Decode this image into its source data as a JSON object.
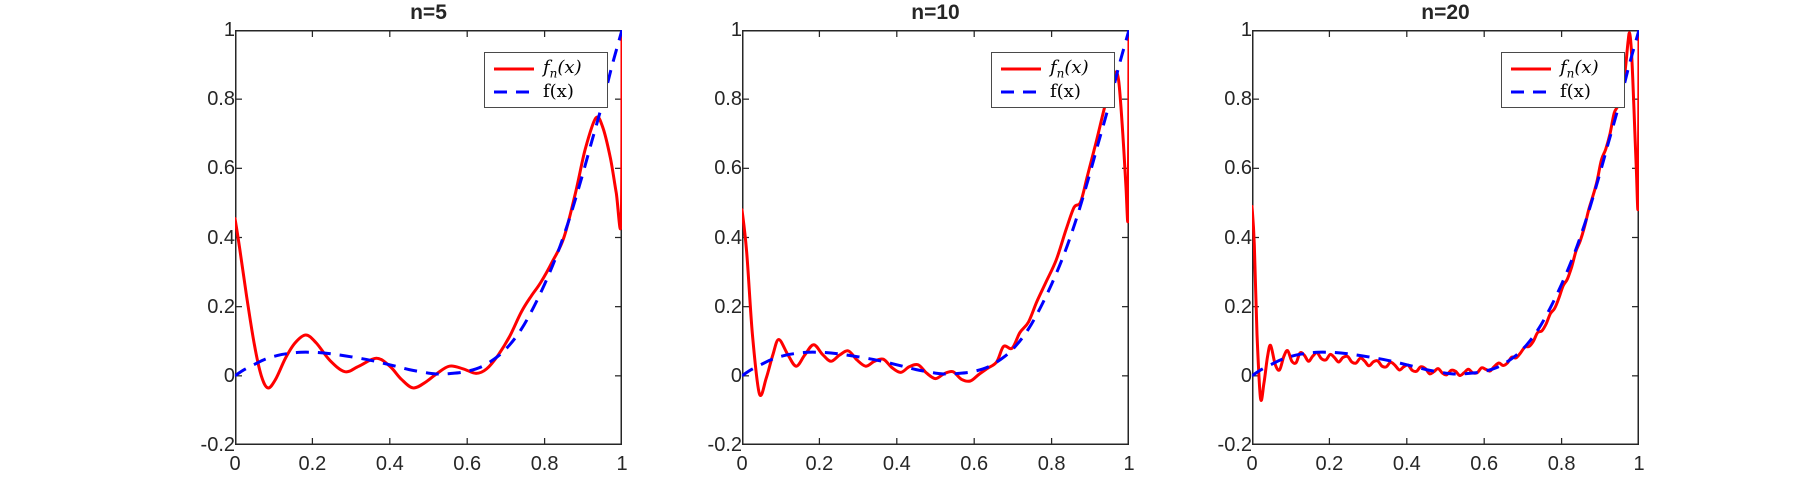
{
  "figure": {
    "background": "#ffffff",
    "axis_color": "#262626",
    "tick_label_color": "#262626",
    "red": "#ff0000",
    "blue": "#0000ff",
    "line_width": 3
  },
  "legend": {
    "fn_base": "f",
    "fn_sub": "n",
    "fn_args": "(x)",
    "f_label": "f(x)"
  },
  "chart_data": {
    "type": "line",
    "xlim": [
      0,
      1
    ],
    "ylim": [
      -0.2,
      1
    ],
    "xticks": [
      "0",
      "0.2",
      "0.4",
      "0.6",
      "0.8",
      "1"
    ],
    "yticks": [
      "-0.2",
      "0",
      "0.2",
      "0.4",
      "0.6",
      "0.8",
      "1"
    ],
    "grid": false,
    "legend_entries": [
      "f_n(x)",
      "f(x)"
    ],
    "legend_position": "top-right",
    "series_styles": [
      {
        "name": "f_n(x)",
        "color": "#ff0000",
        "style": "solid"
      },
      {
        "name": "f(x)",
        "color": "#0000ff",
        "style": "dashed"
      }
    ],
    "f_points": [
      [
        0,
        0
      ],
      [
        0.02,
        0.015
      ],
      [
        0.05,
        0.033
      ],
      [
        0.08,
        0.049
      ],
      [
        0.11,
        0.059
      ],
      [
        0.14,
        0.065
      ],
      [
        0.17,
        0.068
      ],
      [
        0.2,
        0.068
      ],
      [
        0.23,
        0.066
      ],
      [
        0.26,
        0.062
      ],
      [
        0.3,
        0.055
      ],
      [
        0.35,
        0.045
      ],
      [
        0.4,
        0.032
      ],
      [
        0.45,
        0.018
      ],
      [
        0.5,
        0.008
      ],
      [
        0.53,
        0.005
      ],
      [
        0.56,
        0.007
      ],
      [
        0.6,
        0.013
      ],
      [
        0.64,
        0.028
      ],
      [
        0.68,
        0.057
      ],
      [
        0.71,
        0.09
      ],
      [
        0.74,
        0.135
      ],
      [
        0.77,
        0.195
      ],
      [
        0.8,
        0.265
      ],
      [
        0.83,
        0.345
      ],
      [
        0.86,
        0.44
      ],
      [
        0.89,
        0.55
      ],
      [
        0.92,
        0.67
      ],
      [
        0.95,
        0.79
      ],
      [
        0.975,
        0.9
      ],
      [
        1,
        1
      ]
    ],
    "subplots": [
      {
        "title": "n=5",
        "n": 5,
        "fn_points": [
          [
            0,
            0.455
          ],
          [
            0.012,
            0.37
          ],
          [
            0.03,
            0.23
          ],
          [
            0.05,
            0.09
          ],
          [
            0.068,
            0
          ],
          [
            0.085,
            -0.035
          ],
          [
            0.105,
            -0.01
          ],
          [
            0.13,
            0.05
          ],
          [
            0.155,
            0.095
          ],
          [
            0.183,
            0.118
          ],
          [
            0.21,
            0.095
          ],
          [
            0.245,
            0.045
          ],
          [
            0.284,
            0.012
          ],
          [
            0.32,
            0.028
          ],
          [
            0.365,
            0.051
          ],
          [
            0.4,
            0.028
          ],
          [
            0.43,
            -0.01
          ],
          [
            0.46,
            -0.035
          ],
          [
            0.49,
            -0.02
          ],
          [
            0.52,
            0.005
          ],
          [
            0.554,
            0.028
          ],
          [
            0.59,
            0.02
          ],
          [
            0.623,
            0.007
          ],
          [
            0.65,
            0.02
          ],
          [
            0.68,
            0.06
          ],
          [
            0.71,
            0.115
          ],
          [
            0.74,
            0.185
          ],
          [
            0.765,
            0.23
          ],
          [
            0.79,
            0.27
          ],
          [
            0.82,
            0.33
          ],
          [
            0.85,
            0.4
          ],
          [
            0.88,
            0.53
          ],
          [
            0.905,
            0.655
          ],
          [
            0.932,
            0.745
          ],
          [
            0.95,
            0.72
          ],
          [
            0.97,
            0.63
          ],
          [
            0.985,
            0.53
          ],
          [
            0.998,
            0.45
          ],
          [
            1,
            1
          ]
        ]
      },
      {
        "title": "n=10",
        "n": 10,
        "fn_points": [
          [
            0,
            0.48
          ],
          [
            0.012,
            0.36
          ],
          [
            0.027,
            0.12
          ],
          [
            0.045,
            -0.052
          ],
          [
            0.063,
            -0.005
          ],
          [
            0.08,
            0.062
          ],
          [
            0.095,
            0.105
          ],
          [
            0.118,
            0.062
          ],
          [
            0.14,
            0.028
          ],
          [
            0.162,
            0.06
          ],
          [
            0.185,
            0.09
          ],
          [
            0.208,
            0.062
          ],
          [
            0.23,
            0.042
          ],
          [
            0.252,
            0.06
          ],
          [
            0.275,
            0.072
          ],
          [
            0.297,
            0.046
          ],
          [
            0.32,
            0.028
          ],
          [
            0.342,
            0.042
          ],
          [
            0.365,
            0.048
          ],
          [
            0.387,
            0.024
          ],
          [
            0.41,
            0.01
          ],
          [
            0.432,
            0.026
          ],
          [
            0.455,
            0.032
          ],
          [
            0.477,
            0.008
          ],
          [
            0.5,
            -0.008
          ],
          [
            0.522,
            0.006
          ],
          [
            0.545,
            0.012
          ],
          [
            0.567,
            -0.01
          ],
          [
            0.59,
            -0.015
          ],
          [
            0.612,
            0.004
          ],
          [
            0.635,
            0.022
          ],
          [
            0.658,
            0.04
          ],
          [
            0.676,
            0.085
          ],
          [
            0.698,
            0.08
          ],
          [
            0.718,
            0.125
          ],
          [
            0.74,
            0.155
          ],
          [
            0.762,
            0.215
          ],
          [
            0.785,
            0.27
          ],
          [
            0.812,
            0.335
          ],
          [
            0.838,
            0.425
          ],
          [
            0.858,
            0.487
          ],
          [
            0.875,
            0.503
          ],
          [
            0.893,
            0.58
          ],
          [
            0.916,
            0.68
          ],
          [
            0.94,
            0.79
          ],
          [
            0.962,
            0.872
          ],
          [
            0.973,
            0.855
          ],
          [
            0.984,
            0.7
          ],
          [
            0.992,
            0.55
          ],
          [
            0.998,
            0.47
          ],
          [
            1,
            1
          ]
        ]
      },
      {
        "title": "n=20",
        "n": 20,
        "fn_points": [
          [
            0,
            0.49
          ],
          [
            0.006,
            0.38
          ],
          [
            0.013,
            0.12
          ],
          [
            0.022,
            -0.065
          ],
          [
            0.031,
            -0.02
          ],
          [
            0.04,
            0.055
          ],
          [
            0.048,
            0.088
          ],
          [
            0.06,
            0.033
          ],
          [
            0.071,
            0.017
          ],
          [
            0.082,
            0.055
          ],
          [
            0.092,
            0.073
          ],
          [
            0.103,
            0.042
          ],
          [
            0.114,
            0.038
          ],
          [
            0.124,
            0.066
          ],
          [
            0.135,
            0.06
          ],
          [
            0.146,
            0.042
          ],
          [
            0.157,
            0.057
          ],
          [
            0.168,
            0.067
          ],
          [
            0.179,
            0.05
          ],
          [
            0.191,
            0.046
          ],
          [
            0.202,
            0.062
          ],
          [
            0.213,
            0.053
          ],
          [
            0.224,
            0.04
          ],
          [
            0.235,
            0.053
          ],
          [
            0.247,
            0.056
          ],
          [
            0.258,
            0.04
          ],
          [
            0.269,
            0.037
          ],
          [
            0.28,
            0.051
          ],
          [
            0.291,
            0.043
          ],
          [
            0.302,
            0.029
          ],
          [
            0.314,
            0.041
          ],
          [
            0.325,
            0.043
          ],
          [
            0.336,
            0.028
          ],
          [
            0.347,
            0.026
          ],
          [
            0.358,
            0.039
          ],
          [
            0.369,
            0.031
          ],
          [
            0.381,
            0.017
          ],
          [
            0.392,
            0.026
          ],
          [
            0.403,
            0.031
          ],
          [
            0.414,
            0.016
          ],
          [
            0.425,
            0.013
          ],
          [
            0.436,
            0.026
          ],
          [
            0.448,
            0.021
          ],
          [
            0.459,
            0.006
          ],
          [
            0.47,
            0.012
          ],
          [
            0.481,
            0.021
          ],
          [
            0.492,
            0.008
          ],
          [
            0.503,
            0.003
          ],
          [
            0.515,
            0.016
          ],
          [
            0.526,
            0.013
          ],
          [
            0.537,
            0.001
          ],
          [
            0.548,
            0.009
          ],
          [
            0.559,
            0.019
          ],
          [
            0.57,
            0.009
          ],
          [
            0.582,
            0.009
          ],
          [
            0.593,
            0.023
          ],
          [
            0.604,
            0.019
          ],
          [
            0.615,
            0.014
          ],
          [
            0.626,
            0.027
          ],
          [
            0.638,
            0.037
          ],
          [
            0.649,
            0.03
          ],
          [
            0.66,
            0.037
          ],
          [
            0.671,
            0.054
          ],
          [
            0.682,
            0.052
          ],
          [
            0.693,
            0.065
          ],
          [
            0.705,
            0.083
          ],
          [
            0.716,
            0.085
          ],
          [
            0.727,
            0.1
          ],
          [
            0.738,
            0.125
          ],
          [
            0.749,
            0.13
          ],
          [
            0.76,
            0.15
          ],
          [
            0.771,
            0.18
          ],
          [
            0.782,
            0.195
          ],
          [
            0.793,
            0.225
          ],
          [
            0.804,
            0.26
          ],
          [
            0.815,
            0.28
          ],
          [
            0.826,
            0.315
          ],
          [
            0.837,
            0.36
          ],
          [
            0.848,
            0.39
          ],
          [
            0.859,
            0.43
          ],
          [
            0.87,
            0.48
          ],
          [
            0.881,
            0.52
          ],
          [
            0.892,
            0.565
          ],
          [
            0.903,
            0.625
          ],
          [
            0.914,
            0.655
          ],
          [
            0.925,
            0.7
          ],
          [
            0.936,
            0.76
          ],
          [
            0.945,
            0.78
          ],
          [
            0.953,
            0.82
          ],
          [
            0.96,
            0.85
          ],
          [
            0.966,
            0.9
          ],
          [
            0.972,
            0.97
          ],
          [
            0.976,
            0.99
          ],
          [
            0.981,
            0.93
          ],
          [
            0.987,
            0.77
          ],
          [
            0.993,
            0.6
          ],
          [
            0.998,
            0.5
          ],
          [
            1,
            1
          ]
        ]
      }
    ]
  }
}
